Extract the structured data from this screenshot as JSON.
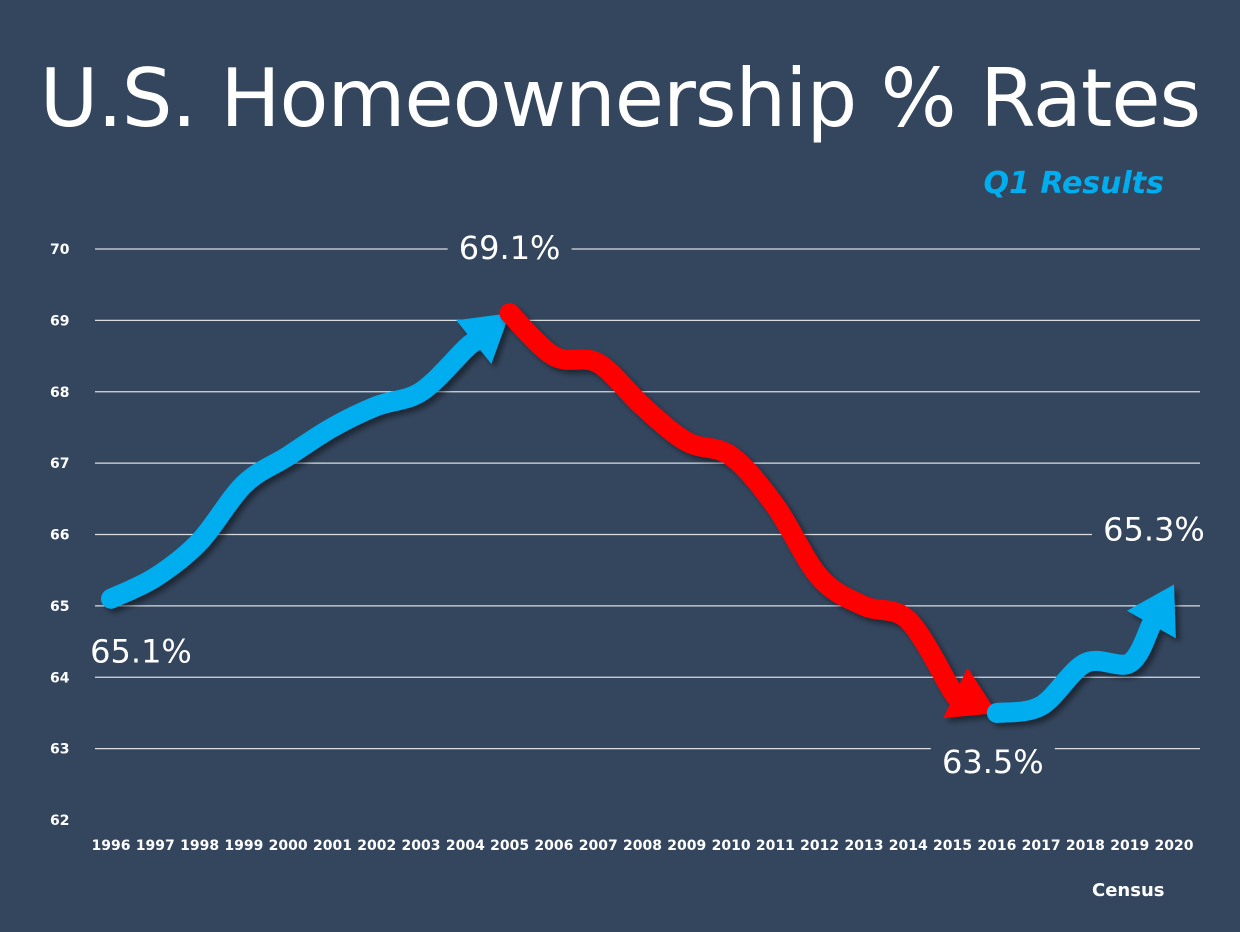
{
  "chart_data": {
    "type": "line",
    "title": "U.S. Homeownership % Rates",
    "subtitle": "Q1 Results",
    "source": "Census",
    "xlabel": "",
    "ylabel": "",
    "ylim": [
      62,
      70
    ],
    "yticks": [
      "62",
      "63",
      "64",
      "65",
      "66",
      "67",
      "68",
      "69",
      "70"
    ],
    "grid": true,
    "x": [
      "1996",
      "1997",
      "1998",
      "1999",
      "2000",
      "2001",
      "2002",
      "2003",
      "2004",
      "2005",
      "2006",
      "2007",
      "2008",
      "2009",
      "2010",
      "2011",
      "2012",
      "2013",
      "2014",
      "2015",
      "2016",
      "2017",
      "2018",
      "2019",
      "2020"
    ],
    "values": [
      65.1,
      65.4,
      65.9,
      66.7,
      67.1,
      67.5,
      67.8,
      68.0,
      68.6,
      69.1,
      68.5,
      68.4,
      67.8,
      67.3,
      67.1,
      66.4,
      65.4,
      65.0,
      64.8,
      63.8,
      63.5,
      63.6,
      64.2,
      64.2,
      65.3
    ],
    "segments": [
      {
        "from": "1996",
        "to": "2005",
        "trend": "up",
        "color": "#00adef"
      },
      {
        "from": "2005",
        "to": "2016",
        "trend": "down",
        "color": "#ff0000"
      },
      {
        "from": "2016",
        "to": "2020",
        "trend": "up",
        "color": "#00adef"
      }
    ],
    "annotations": [
      {
        "text": "65.1%",
        "year": "1996"
      },
      {
        "text": "69.1%",
        "year": "2005"
      },
      {
        "text": "63.5%",
        "year": "2016"
      },
      {
        "text": "65.3%",
        "year": "2020"
      }
    ],
    "background": "#34465e"
  }
}
